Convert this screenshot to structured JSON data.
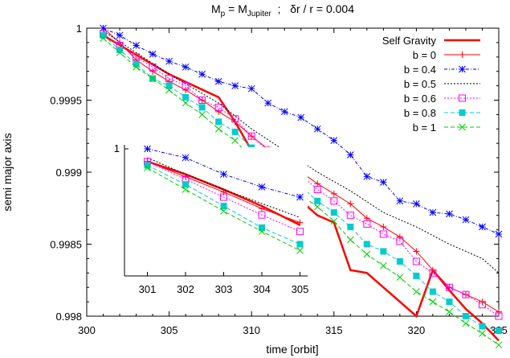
{
  "chart_data": {
    "type": "line",
    "title": "M_p = M_Jupiter  ;  δr / r = 0.004",
    "title_parts": {
      "mass": "M",
      "mass_sub": "p",
      "equals": " = M",
      "jupiter_sub": "Jupiter",
      "sep": "  ;   δr / r = 0.004"
    },
    "xlabel": "time [orbit]",
    "ylabel": "semi major axis",
    "xlim": [
      300,
      325
    ],
    "ylim": [
      0.998,
      1.0
    ],
    "grid": false,
    "legend_placement": "top-right",
    "x_ticks": [
      "300",
      "305",
      "310",
      "315",
      "320",
      "325"
    ],
    "y_ticks": [
      "0.998",
      "0.9985",
      "0.999",
      "0.9995",
      "1"
    ],
    "series": [
      {
        "name": "Self Gravity",
        "color": "#ff0000",
        "style": "solid-thick",
        "marker": "none",
        "points": [
          [
            301,
            0.99995
          ],
          [
            305,
            0.99968
          ],
          [
            308,
            0.99952
          ],
          [
            309,
            0.99935
          ],
          [
            310,
            0.99915
          ],
          [
            311,
            0.999
          ],
          [
            312,
            0.9989
          ],
          [
            313,
            0.9988
          ],
          [
            314,
            0.9987
          ],
          [
            315,
            0.99865
          ],
          [
            316,
            0.99832
          ],
          [
            317,
            0.9983
          ],
          [
            318,
            0.9982
          ],
          [
            319,
            0.9981
          ],
          [
            320,
            0.998
          ],
          [
            321,
            0.99832
          ],
          [
            322,
            0.99818
          ],
          [
            323,
            0.99805
          ],
          [
            324,
            0.99795
          ],
          [
            325,
            0.99783
          ]
        ]
      },
      {
        "name": "b = 0",
        "color": "#ff0000",
        "style": "solid-thin",
        "marker": "plus",
        "points": [
          [
            301,
            1.0
          ],
          [
            302,
            0.9999
          ],
          [
            303,
            0.99978
          ],
          [
            304,
            0.9997
          ],
          [
            305,
            0.99963
          ],
          [
            306,
            0.99957
          ],
          [
            307,
            0.9995
          ],
          [
            308,
            0.99942
          ],
          [
            309,
            0.99935
          ],
          [
            310,
            0.99925
          ],
          [
            311,
            0.99916
          ],
          [
            312,
            0.99908
          ],
          [
            313,
            0.999
          ],
          [
            314,
            0.99892
          ],
          [
            315,
            0.99885
          ],
          [
            316,
            0.99878
          ],
          [
            317,
            0.99868
          ],
          [
            318,
            0.99862
          ],
          [
            319,
            0.99855
          ],
          [
            320,
            0.99845
          ],
          [
            321,
            0.99832
          ],
          [
            322,
            0.9982
          ],
          [
            323,
            0.99815
          ],
          [
            324,
            0.9981
          ],
          [
            325,
            0.99803
          ]
        ]
      },
      {
        "name": "b = 0.4",
        "color": "#0000ff",
        "style": "dash-dot",
        "marker": "star",
        "points": [
          [
            301,
            1.0
          ],
          [
            302,
            0.99995
          ],
          [
            303,
            0.99988
          ],
          [
            304,
            0.99982
          ],
          [
            305,
            0.99977
          ],
          [
            306,
            0.99973
          ],
          [
            307,
            0.99968
          ],
          [
            308,
            0.99963
          ],
          [
            309,
            0.9996
          ],
          [
            310,
            0.99958
          ],
          [
            311,
            0.99948
          ],
          [
            312,
            0.99942
          ],
          [
            313,
            0.99938
          ],
          [
            314,
            0.9993
          ],
          [
            315,
            0.99922
          ],
          [
            316,
            0.99912
          ],
          [
            317,
            0.99897
          ],
          [
            318,
            0.99893
          ],
          [
            319,
            0.9988
          ],
          [
            320,
            0.99878
          ],
          [
            321,
            0.99872
          ],
          [
            322,
            0.99871
          ],
          [
            323,
            0.99867
          ],
          [
            324,
            0.99862
          ],
          [
            325,
            0.99857
          ]
        ]
      },
      {
        "name": "b = 0.5",
        "color": "#000000",
        "style": "dotted",
        "marker": "none",
        "points": [
          [
            301,
            0.99998
          ],
          [
            305,
            0.99968
          ],
          [
            308,
            0.99948
          ],
          [
            310,
            0.9993
          ],
          [
            312,
            0.99915
          ],
          [
            314,
            0.999
          ],
          [
            316,
            0.99887
          ],
          [
            318,
            0.99872
          ],
          [
            320,
            0.99862
          ],
          [
            322,
            0.9985
          ],
          [
            324,
            0.9984
          ],
          [
            325,
            0.9983
          ]
        ]
      },
      {
        "name": "b = 0.6",
        "color": "#ff00ff",
        "style": "dotted",
        "marker": "box",
        "points": [
          [
            301,
            0.99996
          ],
          [
            302,
            0.99988
          ],
          [
            303,
            0.9998
          ],
          [
            304,
            0.99973
          ],
          [
            305,
            0.99965
          ],
          [
            306,
            0.9996
          ],
          [
            307,
            0.9995
          ],
          [
            308,
            0.99945
          ],
          [
            309,
            0.99937
          ],
          [
            310,
            0.99925
          ],
          [
            311,
            0.99915
          ],
          [
            312,
            0.99906
          ],
          [
            313,
            0.99898
          ],
          [
            314,
            0.99888
          ],
          [
            315,
            0.9988
          ],
          [
            316,
            0.9987
          ],
          [
            317,
            0.99864
          ],
          [
            318,
            0.99857
          ],
          [
            319,
            0.99852
          ],
          [
            320,
            0.99838
          ],
          [
            321,
            0.9983
          ],
          [
            322,
            0.9982
          ],
          [
            323,
            0.99815
          ],
          [
            324,
            0.99808
          ],
          [
            325,
            0.998
          ]
        ]
      },
      {
        "name": "b = 0.8",
        "color": "#00cccc",
        "style": "dash",
        "marker": "filled-box",
        "points": [
          [
            301,
            0.99995
          ],
          [
            302,
            0.99985
          ],
          [
            303,
            0.99975
          ],
          [
            304,
            0.99965
          ],
          [
            305,
            0.9996
          ],
          [
            306,
            0.99952
          ],
          [
            307,
            0.99945
          ],
          [
            308,
            0.99935
          ],
          [
            309,
            0.99928
          ],
          [
            310,
            0.99917
          ],
          [
            311,
            0.99907
          ],
          [
            312,
            0.99897
          ],
          [
            313,
            0.9989
          ],
          [
            314,
            0.9988
          ],
          [
            315,
            0.99872
          ],
          [
            316,
            0.99862
          ],
          [
            317,
            0.9985
          ],
          [
            318,
            0.99845
          ],
          [
            319,
            0.99838
          ],
          [
            320,
            0.99828
          ],
          [
            321,
            0.99817
          ],
          [
            322,
            0.9981
          ],
          [
            323,
            0.998
          ],
          [
            324,
            0.99793
          ],
          [
            325,
            0.9979
          ]
        ]
      },
      {
        "name": "b = 1",
        "color": "#00cc00",
        "style": "dash",
        "marker": "x",
        "points": [
          [
            301,
            0.99993
          ],
          [
            302,
            0.99983
          ],
          [
            303,
            0.99973
          ],
          [
            304,
            0.99965
          ],
          [
            305,
            0.99957
          ],
          [
            306,
            0.99948
          ],
          [
            307,
            0.9994
          ],
          [
            308,
            0.9993
          ],
          [
            309,
            0.99922
          ],
          [
            310,
            0.9991
          ],
          [
            311,
            0.99902
          ],
          [
            312,
            0.99893
          ],
          [
            313,
            0.99884
          ],
          [
            314,
            0.99876
          ],
          [
            315,
            0.99866
          ],
          [
            316,
            0.99853
          ],
          [
            317,
            0.99843
          ],
          [
            318,
            0.99835
          ],
          [
            319,
            0.99827
          ],
          [
            320,
            0.99817
          ],
          [
            321,
            0.9981
          ],
          [
            322,
            0.99803
          ],
          [
            323,
            0.99795
          ],
          [
            324,
            0.99788
          ],
          [
            325,
            0.9978
          ]
        ]
      }
    ],
    "inset": {
      "xlim": [
        300.4,
        305.2
      ],
      "x_ticks": [
        "301",
        "302",
        "303",
        "304",
        "305"
      ],
      "y_tick_label": "1",
      "series": [
        {
          "name": "Self Gravity",
          "points": [
            [
              301,
              0.9999
            ],
            [
              302,
              0.9998
            ],
            [
              303,
              0.99968
            ],
            [
              304,
              0.99955
            ],
            [
              305,
              0.9994
            ]
          ]
        },
        {
          "name": "b = 0",
          "points": [
            [
              301,
              0.9999
            ],
            [
              302,
              0.99978
            ],
            [
              303,
              0.99966
            ],
            [
              304,
              0.99953
            ],
            [
              305,
              0.99942
            ]
          ]
        },
        {
          "name": "b = 0.4",
          "points": [
            [
              301,
              1.0
            ],
            [
              302,
              0.99993
            ],
            [
              303,
              0.9998
            ],
            [
              304,
              0.9997
            ],
            [
              305,
              0.99962
            ]
          ]
        },
        {
          "name": "b = 0.5",
          "points": [
            [
              301,
              0.99993
            ],
            [
              302,
              0.9998
            ],
            [
              303,
              0.99968
            ],
            [
              304,
              0.99957
            ],
            [
              305,
              0.99946
            ]
          ]
        },
        {
          "name": "b = 0.6",
          "points": [
            [
              301,
              0.9999
            ],
            [
              302,
              0.99976
            ],
            [
              303,
              0.99962
            ],
            [
              304,
              0.99948
            ],
            [
              305,
              0.99935
            ]
          ]
        },
        {
          "name": "b = 0.8",
          "points": [
            [
              301,
              0.99987
            ],
            [
              302,
              0.99972
            ],
            [
              303,
              0.99955
            ],
            [
              304,
              0.99938
            ],
            [
              305,
              0.99925
            ]
          ]
        },
        {
          "name": "b = 1",
          "points": [
            [
              301,
              0.99985
            ],
            [
              302,
              0.99968
            ],
            [
              303,
              0.99951
            ],
            [
              304,
              0.99935
            ],
            [
              305,
              0.9992
            ]
          ]
        }
      ]
    }
  }
}
